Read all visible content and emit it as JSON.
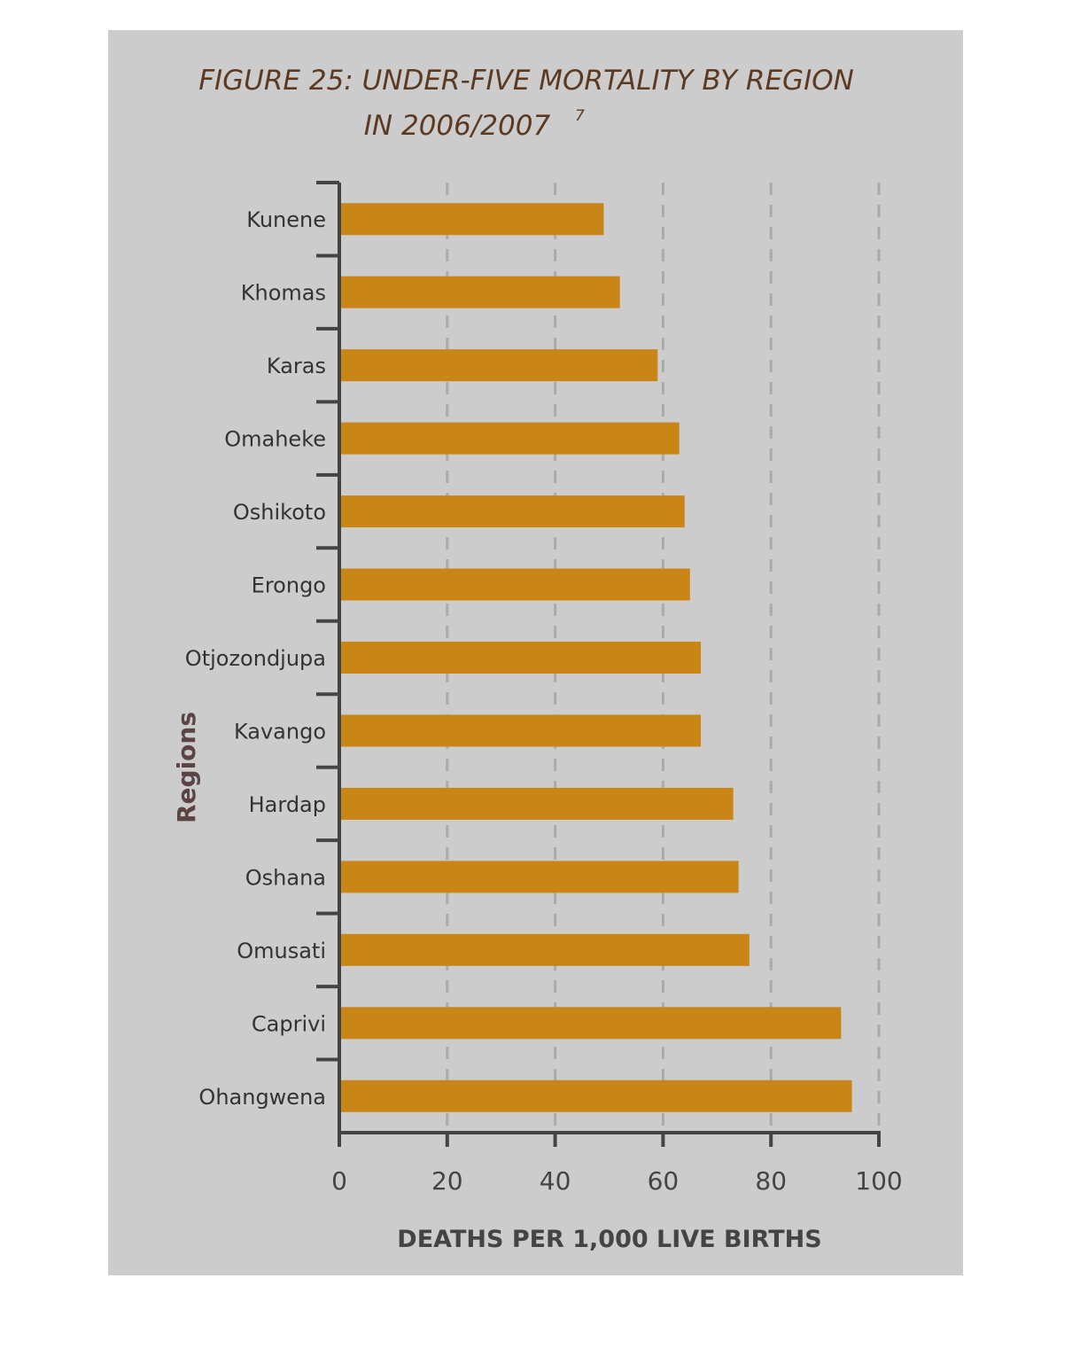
{
  "chart_data": {
    "type": "bar",
    "orientation": "horizontal",
    "title": "FIGURE 25: UNDER-FIVE MORTALITY BY REGION",
    "subtitle": "IN 2006/2007",
    "subtitle_superscript": "7",
    "xlabel": "DEATHS PER 1,000 LIVE BIRTHS",
    "ylabel": "Regions",
    "xlim": [
      0,
      100
    ],
    "xticks": [
      0,
      20,
      40,
      60,
      80,
      100
    ],
    "grid": true,
    "categories": [
      "Kunene",
      "Khomas",
      "Karas",
      "Omaheke",
      "Oshikoto",
      "Erongo",
      "Otjozondjupa",
      "Kavango",
      "Hardap",
      "Oshana",
      "Omusati",
      "Caprivi",
      "Ohangwena"
    ],
    "values": [
      49,
      52,
      59,
      63,
      64,
      65,
      67,
      67,
      73,
      74,
      76,
      93,
      95
    ],
    "colors": {
      "bar": "#c98516",
      "panel": "#cccccc",
      "axis": "#444444",
      "grid": "#aaaaaa",
      "title": "#5c3a22"
    }
  }
}
